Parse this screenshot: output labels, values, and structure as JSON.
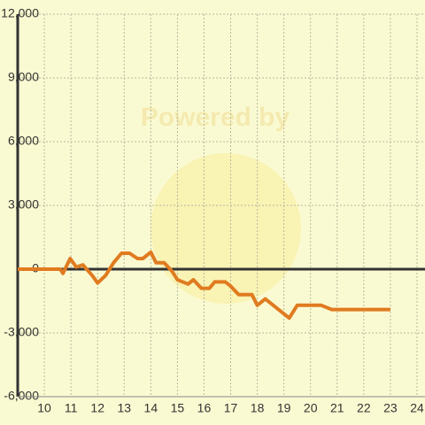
{
  "chart_data": {
    "type": "line",
    "watermark": "Powered by",
    "x": [
      9,
      10.6,
      10.7,
      10.97,
      11.2,
      11.45,
      11.8,
      12.0,
      12.3,
      12.6,
      12.9,
      13.2,
      13.5,
      13.7,
      14.0,
      14.2,
      14.5,
      14.8,
      15.0,
      15.4,
      15.6,
      15.9,
      16.2,
      16.4,
      16.8,
      17.0,
      17.3,
      17.8,
      18.0,
      18.3,
      18.6,
      19.1,
      19.2,
      19.5,
      20.4,
      20.8,
      23.0
    ],
    "series": [
      {
        "color": "#e07b20",
        "values": [
          0,
          0,
          -200,
          500,
          100,
          200,
          -300,
          -650,
          -300,
          300,
          750,
          750,
          500,
          500,
          800,
          300,
          300,
          -100,
          -500,
          -700,
          -500,
          -900,
          -900,
          -600,
          -600,
          -800,
          -1200,
          -1200,
          -1700,
          -1400,
          -1700,
          -2200,
          -2300,
          -1700,
          -1700,
          -1900,
          -1900
        ]
      }
    ],
    "xlim": [
      9,
      24.3
    ],
    "xticks": [
      10,
      11,
      12,
      13,
      14,
      15,
      16,
      17,
      18,
      19,
      20,
      21,
      22,
      23,
      24
    ],
    "ylim": [
      -6000,
      12000
    ],
    "yticks": [
      {
        "value": -6000,
        "label": "-6,000"
      },
      {
        "value": -3000,
        "label": "-3,000"
      },
      0,
      {
        "value": 3000,
        "label": "3,000"
      },
      {
        "value": 6000,
        "label": "6,000"
      },
      {
        "value": 9000,
        "label": "9,000"
      },
      {
        "value": 12000,
        "label": "12,000"
      }
    ],
    "grid": true
  }
}
